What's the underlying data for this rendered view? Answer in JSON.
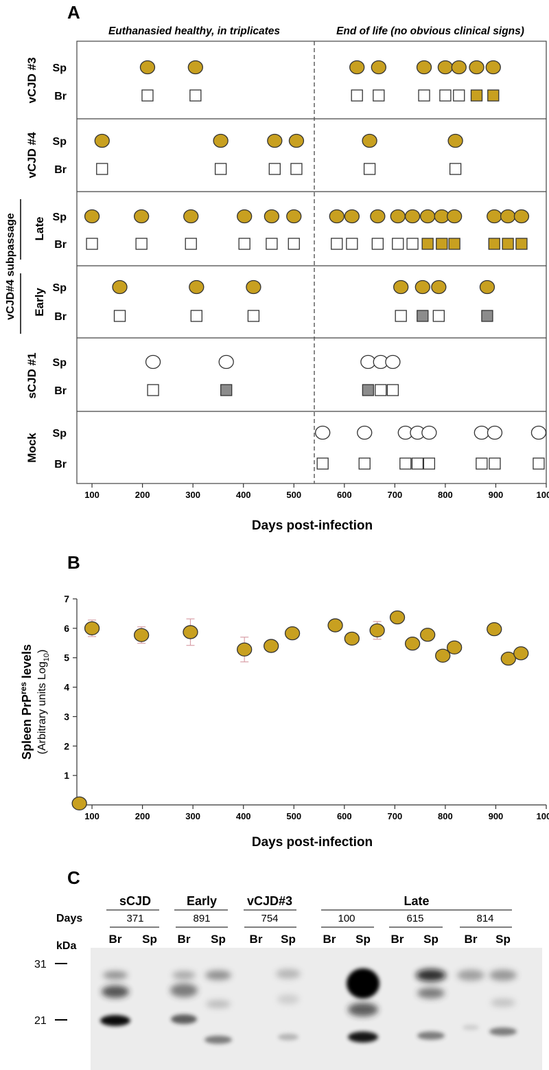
{
  "colors": {
    "gold": "#C8A020",
    "gray": "#8C8C8C",
    "outline": "#333333",
    "white": "#ffffff",
    "errorbar": "#d9a0a8"
  },
  "panel_labels": {
    "a": "A",
    "b": "B",
    "c": "C"
  },
  "panel_a": {
    "header_left": "Euthanasied healthy, in triplicates",
    "header_right": "End of life (no obvious clinical signs)",
    "group_label": "vCJD#4 subpassage",
    "rows": [
      {
        "name": "vCJD #3",
        "sp_label": "Sp",
        "br_label": "Br"
      },
      {
        "name": "vCJD #4",
        "sp_label": "Sp",
        "br_label": "Br"
      },
      {
        "name": "Late",
        "sp_label": "Sp",
        "br_label": "Br"
      },
      {
        "name": "Early",
        "sp_label": "Sp",
        "br_label": "Br"
      },
      {
        "name": "sCJD #1",
        "sp_label": "Sp",
        "br_label": "Br"
      },
      {
        "name": "Mock",
        "sp_label": "Sp",
        "br_label": "Br"
      }
    ]
  },
  "panel_c": {
    "days_label": "Days",
    "kda_label": "kDa",
    "markers": [
      "31",
      "21"
    ],
    "groups": [
      {
        "name": "sCJD",
        "days": [
          "371"
        ]
      },
      {
        "name": "Early",
        "days": [
          "891"
        ]
      },
      {
        "name": "vCJD#3",
        "days": [
          "754"
        ]
      },
      {
        "name": "Late",
        "days": [
          "100",
          "615",
          "814"
        ]
      }
    ],
    "lanes": [
      "Br",
      "Sp",
      "Br",
      "Sp",
      "Br",
      "Sp",
      "Br",
      "Sp",
      "Br",
      "Sp",
      "Br",
      "Sp"
    ]
  },
  "chart_data": [
    {
      "type": "scatter",
      "title": "",
      "xlabel": "Days post-infection",
      "ylabel": "",
      "xlim": [
        70,
        1000
      ],
      "xticks": [
        100,
        200,
        300,
        400,
        500,
        600,
        700,
        800,
        900,
        1000
      ],
      "divider_x": 545,
      "legend": "none",
      "marker_key": {
        "circle": "Sp (spleen)",
        "square": "Br (brain)",
        "fill": "gold = positive, gray = weak, white = negative"
      },
      "series": [
        {
          "group": "vCJD #3",
          "tissue": "Sp",
          "points": [
            {
              "x": 210,
              "fill": "gold"
            },
            {
              "x": 305,
              "fill": "gold"
            },
            {
              "x": 625,
              "fill": "gold"
            },
            {
              "x": 668,
              "fill": "gold"
            },
            {
              "x": 758,
              "fill": "gold"
            },
            {
              "x": 800,
              "fill": "gold"
            },
            {
              "x": 827,
              "fill": "gold"
            },
            {
              "x": 862,
              "fill": "gold"
            },
            {
              "x": 895,
              "fill": "gold"
            }
          ]
        },
        {
          "group": "vCJD #3",
          "tissue": "Br",
          "points": [
            {
              "x": 210,
              "fill": "white"
            },
            {
              "x": 305,
              "fill": "white"
            },
            {
              "x": 625,
              "fill": "white"
            },
            {
              "x": 668,
              "fill": "white"
            },
            {
              "x": 758,
              "fill": "white"
            },
            {
              "x": 800,
              "fill": "white"
            },
            {
              "x": 827,
              "fill": "white"
            },
            {
              "x": 862,
              "fill": "gold"
            },
            {
              "x": 895,
              "fill": "gold"
            }
          ]
        },
        {
          "group": "vCJD #4",
          "tissue": "Sp",
          "points": [
            {
              "x": 120,
              "fill": "gold"
            },
            {
              "x": 355,
              "fill": "gold"
            },
            {
              "x": 462,
              "fill": "gold"
            },
            {
              "x": 505,
              "fill": "gold"
            },
            {
              "x": 650,
              "fill": "gold"
            },
            {
              "x": 820,
              "fill": "gold"
            }
          ]
        },
        {
          "group": "vCJD #4",
          "tissue": "Br",
          "points": [
            {
              "x": 120,
              "fill": "white"
            },
            {
              "x": 355,
              "fill": "white"
            },
            {
              "x": 462,
              "fill": "white"
            },
            {
              "x": 505,
              "fill": "white"
            },
            {
              "x": 650,
              "fill": "white"
            },
            {
              "x": 820,
              "fill": "white"
            }
          ]
        },
        {
          "group": "Late",
          "tissue": "Sp",
          "points": [
            {
              "x": 100,
              "fill": "gold"
            },
            {
              "x": 198,
              "fill": "gold"
            },
            {
              "x": 296,
              "fill": "gold"
            },
            {
              "x": 402,
              "fill": "gold"
            },
            {
              "x": 456,
              "fill": "gold"
            },
            {
              "x": 500,
              "fill": "gold"
            },
            {
              "x": 585,
              "fill": "gold"
            },
            {
              "x": 615,
              "fill": "gold"
            },
            {
              "x": 666,
              "fill": "gold"
            },
            {
              "x": 706,
              "fill": "gold"
            },
            {
              "x": 735,
              "fill": "gold"
            },
            {
              "x": 765,
              "fill": "gold"
            },
            {
              "x": 793,
              "fill": "gold"
            },
            {
              "x": 818,
              "fill": "gold"
            },
            {
              "x": 897,
              "fill": "gold"
            },
            {
              "x": 924,
              "fill": "gold"
            },
            {
              "x": 951,
              "fill": "gold"
            }
          ]
        },
        {
          "group": "Late",
          "tissue": "Br",
          "points": [
            {
              "x": 100,
              "fill": "white"
            },
            {
              "x": 198,
              "fill": "white"
            },
            {
              "x": 296,
              "fill": "white"
            },
            {
              "x": 402,
              "fill": "white"
            },
            {
              "x": 456,
              "fill": "white"
            },
            {
              "x": 500,
              "fill": "white"
            },
            {
              "x": 585,
              "fill": "white"
            },
            {
              "x": 615,
              "fill": "white"
            },
            {
              "x": 666,
              "fill": "white"
            },
            {
              "x": 706,
              "fill": "white"
            },
            {
              "x": 735,
              "fill": "white"
            },
            {
              "x": 765,
              "fill": "gold"
            },
            {
              "x": 793,
              "fill": "gold"
            },
            {
              "x": 818,
              "fill": "gold"
            },
            {
              "x": 897,
              "fill": "gold"
            },
            {
              "x": 924,
              "fill": "gold"
            },
            {
              "x": 951,
              "fill": "gold"
            }
          ]
        },
        {
          "group": "Early",
          "tissue": "Sp",
          "points": [
            {
              "x": 155,
              "fill": "gold"
            },
            {
              "x": 307,
              "fill": "gold"
            },
            {
              "x": 420,
              "fill": "gold"
            },
            {
              "x": 712,
              "fill": "gold"
            },
            {
              "x": 755,
              "fill": "gold"
            },
            {
              "x": 787,
              "fill": "gold"
            },
            {
              "x": 883,
              "fill": "gold"
            }
          ]
        },
        {
          "group": "Early",
          "tissue": "Br",
          "points": [
            {
              "x": 155,
              "fill": "white"
            },
            {
              "x": 307,
              "fill": "white"
            },
            {
              "x": 420,
              "fill": "white"
            },
            {
              "x": 712,
              "fill": "white"
            },
            {
              "x": 755,
              "fill": "gray"
            },
            {
              "x": 787,
              "fill": "white"
            },
            {
              "x": 883,
              "fill": "gray"
            }
          ]
        },
        {
          "group": "sCJD #1",
          "tissue": "Sp",
          "points": [
            {
              "x": 221,
              "fill": "white"
            },
            {
              "x": 366,
              "fill": "white"
            },
            {
              "x": 647,
              "fill": "white"
            },
            {
              "x": 672,
              "fill": "white"
            },
            {
              "x": 696,
              "fill": "white"
            }
          ]
        },
        {
          "group": "sCJD #1",
          "tissue": "Br",
          "points": [
            {
              "x": 221,
              "fill": "white"
            },
            {
              "x": 366,
              "fill": "gray"
            },
            {
              "x": 647,
              "fill": "gray"
            },
            {
              "x": 672,
              "fill": "white"
            },
            {
              "x": 696,
              "fill": "white"
            }
          ]
        },
        {
          "group": "Mock",
          "tissue": "Sp",
          "points": [
            {
              "x": 557,
              "fill": "white"
            },
            {
              "x": 640,
              "fill": "white"
            },
            {
              "x": 721,
              "fill": "white"
            },
            {
              "x": 745,
              "fill": "white"
            },
            {
              "x": 768,
              "fill": "white"
            },
            {
              "x": 872,
              "fill": "white"
            },
            {
              "x": 898,
              "fill": "white"
            },
            {
              "x": 985,
              "fill": "white"
            }
          ]
        },
        {
          "group": "Mock",
          "tissue": "Br",
          "points": [
            {
              "x": 557,
              "fill": "white"
            },
            {
              "x": 640,
              "fill": "white"
            },
            {
              "x": 721,
              "fill": "white"
            },
            {
              "x": 745,
              "fill": "white"
            },
            {
              "x": 768,
              "fill": "white"
            },
            {
              "x": 872,
              "fill": "white"
            },
            {
              "x": 898,
              "fill": "white"
            },
            {
              "x": 985,
              "fill": "white"
            }
          ]
        }
      ]
    },
    {
      "type": "scatter",
      "title": "",
      "xlabel": "Days post-infection",
      "ylabel_main": "Spleen PrP",
      "ylabel_sup": "res",
      "ylabel_tail": " levels",
      "ylabel2_main": "(Arbitrary units Log",
      "ylabel2_sub": "10",
      "ylabel2_tail": ")",
      "xlim": [
        70,
        1000
      ],
      "ylim": [
        0,
        7
      ],
      "xticks": [
        100,
        200,
        300,
        400,
        500,
        600,
        700,
        800,
        900,
        1000
      ],
      "yticks": [
        1,
        2,
        3,
        4,
        5,
        6,
        7
      ],
      "legend": "none",
      "points": [
        {
          "x": 75,
          "y": 0.05
        },
        {
          "x": 100,
          "y": 6.0,
          "err": 0.28
        },
        {
          "x": 198,
          "y": 5.77,
          "err": 0.28
        },
        {
          "x": 295,
          "y": 5.87,
          "err": 0.45
        },
        {
          "x": 402,
          "y": 5.28,
          "err": 0.42
        },
        {
          "x": 455,
          "y": 5.4
        },
        {
          "x": 497,
          "y": 5.83
        },
        {
          "x": 582,
          "y": 6.1
        },
        {
          "x": 615,
          "y": 5.65
        },
        {
          "x": 665,
          "y": 5.93,
          "err": 0.3
        },
        {
          "x": 705,
          "y": 6.37
        },
        {
          "x": 735,
          "y": 5.48
        },
        {
          "x": 765,
          "y": 5.78
        },
        {
          "x": 795,
          "y": 5.07
        },
        {
          "x": 818,
          "y": 5.35
        },
        {
          "x": 897,
          "y": 5.97
        },
        {
          "x": 925,
          "y": 4.97
        },
        {
          "x": 950,
          "y": 5.15
        }
      ]
    }
  ]
}
